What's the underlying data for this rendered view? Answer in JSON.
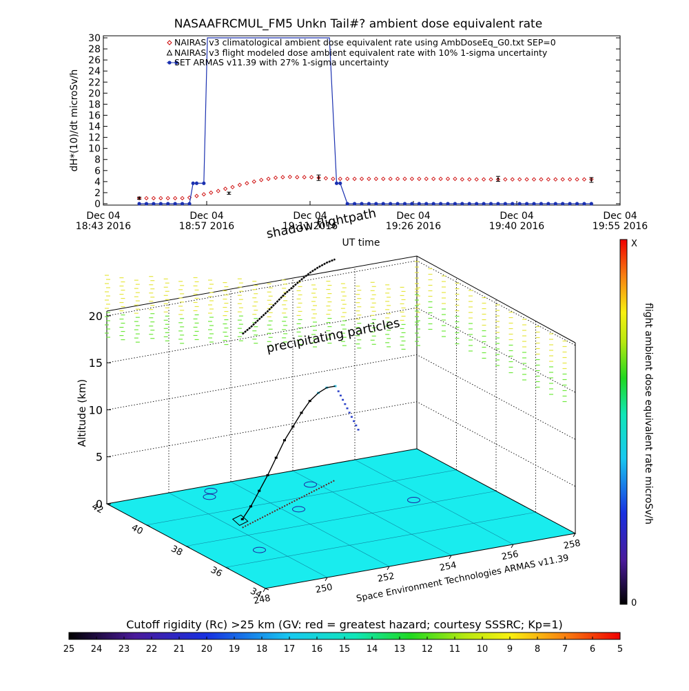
{
  "chart_data": [
    {
      "type": "line",
      "title": "NASAAFRCMUL_FM5 Unkn Tail#? ambient dose equivalent rate",
      "xlabel": "UT time",
      "ylabel": "dH*(10)/dt microSv/h",
      "ylim": [
        0,
        30
      ],
      "y_ticks": [
        0,
        2,
        4,
        6,
        8,
        10,
        12,
        14,
        16,
        18,
        20,
        22,
        24,
        26,
        28,
        30
      ],
      "x_ticks": [
        {
          "line1": "Dec 04",
          "line2": "18:43 2016"
        },
        {
          "line1": "Dec 04",
          "line2": "18:57 2016"
        },
        {
          "line1": "Dec 04",
          "line2": "19:11 2016"
        },
        {
          "line1": "Dec 04",
          "line2": "19:26 2016"
        },
        {
          "line1": "Dec 04",
          "line2": "19:40 2016"
        },
        {
          "line1": "Dec 04",
          "line2": "19:55 2016"
        }
      ],
      "x_range_minutes": [
        0,
        72
      ],
      "legend": [
        "NAIRAS v3 climatological ambient dose equivalent rate using AmbDoseEq_G0.txt SEP=0",
        "NAIRAS v3 flight modeled dose ambient equivalent rate with 10% 1-sigma uncertainty",
        "SET ARMAS v11.39 with 27% 1-sigma uncertainty"
      ],
      "legend_position": "top",
      "series": [
        {
          "name": "NAIRAS v3 climatological ambient dose equivalent rate using AmbDoseEq_G0.txt SEP=0",
          "color": "#cc0000",
          "marker": "diamond",
          "x": [
            5,
            6,
            7,
            8,
            9,
            10,
            11,
            12,
            13,
            14,
            15,
            16,
            17,
            18,
            19,
            20,
            21,
            22,
            23,
            24,
            25,
            26,
            27,
            28,
            29,
            30,
            31,
            32,
            33,
            34,
            35,
            36,
            37,
            38,
            39,
            40,
            41,
            42,
            43,
            44,
            45,
            46,
            47,
            48,
            49,
            50,
            51,
            52,
            53,
            54,
            55,
            56,
            57,
            58,
            59,
            60,
            61,
            62,
            63,
            64,
            65,
            66,
            67,
            68
          ],
          "y": [
            1,
            1,
            1,
            1,
            1,
            1,
            1,
            1.1,
            1.4,
            1.7,
            2,
            2.3,
            2.7,
            3,
            3.4,
            3.7,
            4,
            4.3,
            4.5,
            4.7,
            4.8,
            4.85,
            4.8,
            4.8,
            4.8,
            4.7,
            4.6,
            4.5,
            4.5,
            4.5,
            4.5,
            4.5,
            4.5,
            4.5,
            4.5,
            4.5,
            4.5,
            4.5,
            4.5,
            4.5,
            4.5,
            4.5,
            4.5,
            4.5,
            4.5,
            4.4,
            4.4,
            4.4,
            4.4,
            4.4,
            4.4,
            4.4,
            4.4,
            4.4,
            4.4,
            4.4,
            4.4,
            4.4,
            4.4,
            4.4,
            4.4,
            4.4,
            4.4,
            4.4
          ]
        },
        {
          "name": "NAIRAS v3 flight modeled dose ambient equivalent rate with 10% 1-sigma uncertainty",
          "color": "#000000",
          "marker": "errorbar",
          "x": [
            5,
            17.5,
            30,
            55,
            68
          ],
          "y": [
            1.0,
            1.9,
            4.7,
            4.5,
            4.3
          ],
          "err": [
            0.2,
            0.2,
            0.5,
            0.45,
            0.43
          ]
        },
        {
          "name": "SET ARMAS v11.39 with 27% 1-sigma uncertainty",
          "color": "#1a30b0",
          "marker": "dot",
          "x": [
            5,
            6,
            7,
            8,
            9,
            10,
            11,
            12,
            12.5,
            13,
            14,
            14.5,
            31.5,
            32.5,
            33,
            34,
            35,
            36,
            37,
            38,
            39,
            40,
            41,
            42,
            43,
            44,
            45,
            46,
            47,
            48,
            49,
            50,
            51,
            52,
            53,
            54,
            55,
            56,
            57,
            58,
            59,
            60,
            61,
            62,
            63,
            64,
            65,
            66,
            67,
            68
          ],
          "y": [
            0,
            0,
            0,
            0,
            0,
            0,
            0,
            0,
            3.7,
            3.7,
            3.7,
            30,
            30,
            3.7,
            3.7,
            0,
            0,
            0,
            0,
            0,
            0,
            0,
            0,
            0,
            0,
            0,
            0,
            0,
            0,
            0,
            0,
            0,
            0,
            0,
            0,
            0,
            0,
            0,
            0,
            0,
            0,
            0,
            0,
            0,
            0,
            0,
            0,
            0,
            0,
            0
          ],
          "marker_mask": [
            1,
            1,
            1,
            1,
            1,
            1,
            1,
            1,
            1,
            1,
            1,
            0,
            0,
            1,
            1,
            1,
            1,
            1,
            1,
            1,
            1,
            1,
            1,
            1,
            1,
            1,
            1,
            1,
            1,
            1,
            1,
            1,
            1,
            1,
            1,
            1,
            1,
            1,
            1,
            1,
            1,
            1,
            1,
            1,
            1,
            1,
            1,
            1,
            1,
            1
          ]
        }
      ]
    },
    {
      "type": "scatter",
      "title": "",
      "zlabel": "Altitude (km)",
      "z_ticks": [
        0,
        5,
        10,
        15,
        20
      ],
      "lat_ticks": [
        34,
        36,
        38,
        40,
        42
      ],
      "lon_ticks": [
        248,
        250,
        252,
        254,
        256,
        258
      ],
      "annotations": [
        "shadow flightpath",
        "precipitating particles"
      ],
      "footer": "Space Environment Technologies ARMAS v11.39",
      "colorbar": {
        "label": "flight ambient dose equivalent rate microSv/h",
        "min_label": "0",
        "max_label": "X"
      },
      "flightpath": {
        "lon": [
          250.2,
          250.6,
          251.0,
          251.4,
          251.8,
          252.2,
          252.6,
          253.0,
          253.4,
          253.8,
          254.2,
          254.6
        ],
        "lat": [
          38.6,
          38.8,
          39.0,
          39.2,
          39.4,
          39.6,
          39.8,
          40.0,
          40.2,
          40.4,
          40.6,
          40.8
        ],
        "alt_km": [
          0.9,
          1.8,
          3.0,
          4.2,
          5.6,
          7.0,
          8.0,
          9.0,
          9.8,
          10.2,
          10.3,
          10.0
        ]
      }
    }
  ],
  "rigidity_bar": {
    "title": "Cutoff rigidity (Rc) >25 km (GV: red = greatest hazard; courtesy SSSRC; Kp=1)",
    "ticks": [
      "25",
      "24",
      "23",
      "22",
      "21",
      "20",
      "19",
      "18",
      "17",
      "16",
      "15",
      "14",
      "13",
      "12",
      "11",
      "10",
      "9",
      "8",
      "7",
      "6",
      "5"
    ]
  },
  "colors": {
    "ground": "#19ecee",
    "nairas_clim": "#cc0000",
    "armas": "#1a30b0"
  }
}
